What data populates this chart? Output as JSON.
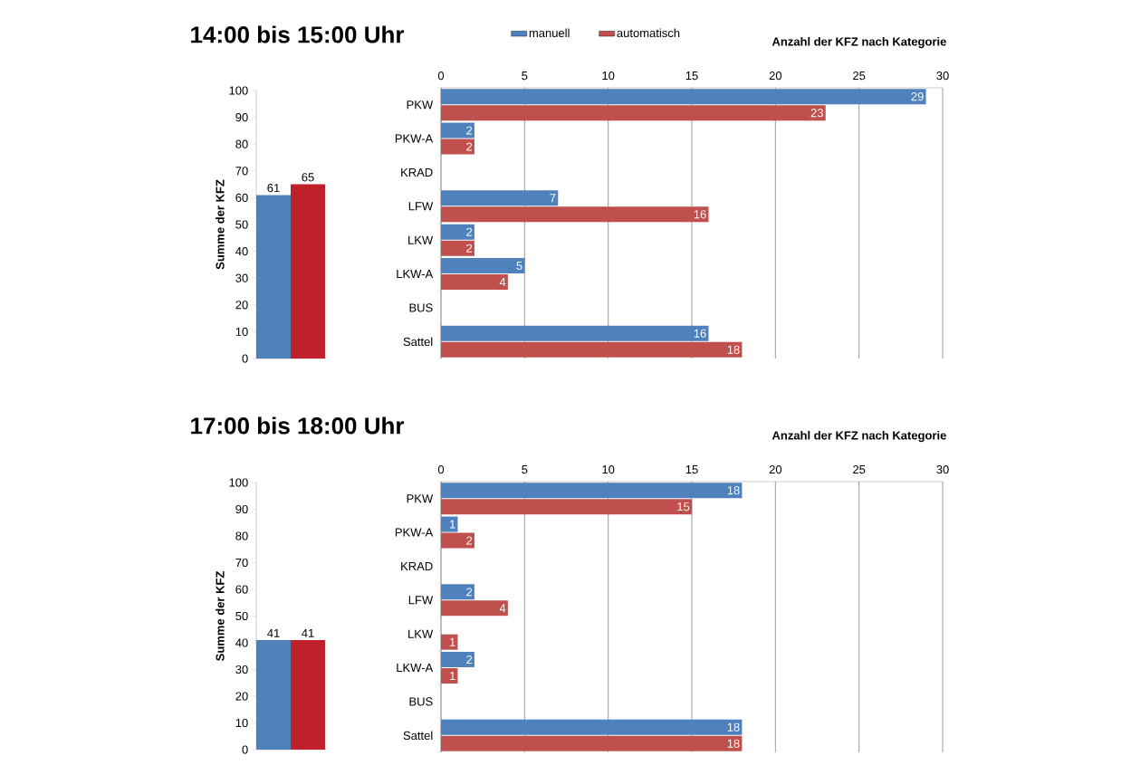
{
  "chart_data": [
    {
      "type": "bar",
      "title": "14:00 bis 15:00 Uhr",
      "ylabel": "Summe der KFZ",
      "categories": [
        null,
        null
      ],
      "values": [
        61,
        65
      ],
      "colors": [
        "#4f81bd",
        "#c0202a"
      ],
      "ylim": [
        0,
        100
      ],
      "yticks": [
        0,
        10,
        20,
        30,
        40,
        50,
        60,
        70,
        80,
        90,
        100
      ],
      "data_labels": true
    },
    {
      "type": "bar",
      "orientation": "horizontal",
      "xlabel": "Anzahl der KFZ nach Kategorie",
      "categories": [
        "PKW",
        "PKW-A",
        "KRAD",
        "LFW",
        "LKW",
        "LKW-A",
        "BUS",
        "Sattel"
      ],
      "series": [
        {
          "name": "manuell",
          "color": "#4f81bd",
          "values": [
            29,
            2,
            null,
            7,
            2,
            5,
            null,
            16
          ]
        },
        {
          "name": "automatisch",
          "color": "#c0504d",
          "values": [
            23,
            2,
            null,
            16,
            2,
            4,
            null,
            18
          ]
        }
      ],
      "xlim": [
        0,
        30
      ],
      "xticks": [
        0,
        5,
        10,
        15,
        20,
        25,
        30
      ],
      "grid": "x",
      "legend": "top",
      "data_labels": true
    },
    {
      "type": "bar",
      "title": "17:00 bis 18:00 Uhr",
      "ylabel": "Summe der KFZ",
      "categories": [
        null,
        null
      ],
      "values": [
        41,
        41
      ],
      "colors": [
        "#4f81bd",
        "#c0202a"
      ],
      "ylim": [
        0,
        100
      ],
      "yticks": [
        0,
        10,
        20,
        30,
        40,
        50,
        60,
        70,
        80,
        90,
        100
      ],
      "data_labels": true
    },
    {
      "type": "bar",
      "orientation": "horizontal",
      "xlabel": "Anzahl der KFZ nach Kategorie",
      "categories": [
        "PKW",
        "PKW-A",
        "KRAD",
        "LFW",
        "LKW",
        "LKW-A",
        "BUS",
        "Sattel"
      ],
      "series": [
        {
          "color": "#4f81bd",
          "values": [
            18,
            1,
            null,
            2,
            null,
            2,
            null,
            18
          ]
        },
        {
          "color": "#c0504d",
          "values": [
            15,
            2,
            null,
            4,
            1,
            1,
            null,
            18
          ]
        }
      ],
      "xlim": [
        0,
        30
      ],
      "xticks": [
        0,
        5,
        10,
        15,
        20,
        25,
        30
      ],
      "grid": "x",
      "data_labels": true
    }
  ]
}
